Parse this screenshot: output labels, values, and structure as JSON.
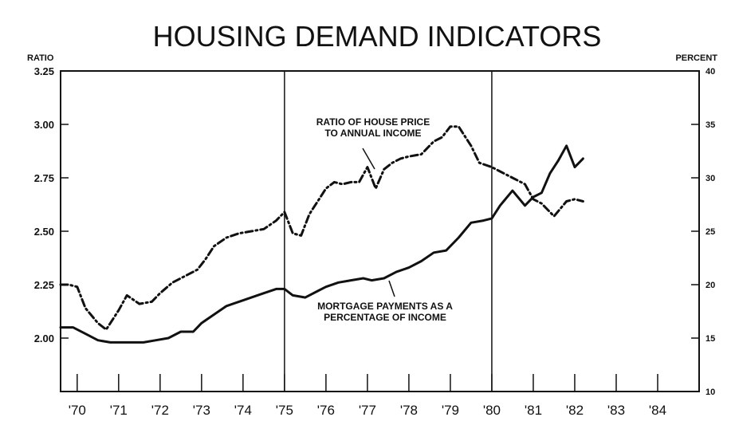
{
  "chart_data": {
    "type": "line",
    "title": "HOUSING DEMAND INDICATORS",
    "left_axis_unit": "RATIO",
    "right_axis_unit": "PERCENT",
    "x_tick_labels": [
      "'70",
      "'71",
      "'72",
      "'73",
      "'74",
      "'75",
      "'76",
      "'77",
      "'78",
      "'79",
      "'80",
      "'81",
      "'82",
      "'83",
      "'84"
    ],
    "x_range": [
      1969.6,
      1985.0
    ],
    "y_left_ticks": [
      "3.25",
      "3.00",
      "2.75",
      "2.50",
      "2.25",
      "2.00"
    ],
    "y_left_range": [
      1.75,
      3.25
    ],
    "y_right_ticks": [
      "40",
      "35",
      "30",
      "25",
      "20",
      "15",
      "10"
    ],
    "y_right_range": [
      10,
      40
    ],
    "vertical_markers_x": [
      1975.0,
      1980.0
    ],
    "grid": false,
    "legend": "none",
    "annotations": [
      {
        "lines": [
          "RATIO OF HOUSE PRICE",
          "TO ANNUAL INCOME"
        ],
        "series": "ratio"
      },
      {
        "lines": [
          "MORTGAGE PAYMENTS AS A",
          "PERCENTAGE OF INCOME"
        ],
        "series": "mortgage"
      }
    ],
    "series": [
      {
        "key": "ratio",
        "axis": "left",
        "style": "dashdot",
        "x": [
          1969.6,
          1969.8,
          1970.0,
          1970.2,
          1970.5,
          1970.7,
          1971.0,
          1971.2,
          1971.5,
          1971.8,
          1972.0,
          1972.3,
          1972.6,
          1972.9,
          1973.1,
          1973.3,
          1973.6,
          1973.9,
          1974.2,
          1974.5,
          1974.8,
          1975.0,
          1975.2,
          1975.4,
          1975.6,
          1975.8,
          1976.0,
          1976.2,
          1976.4,
          1976.6,
          1976.8,
          1977.0,
          1977.2,
          1977.4,
          1977.6,
          1977.8,
          1978.0,
          1978.3,
          1978.6,
          1978.8,
          1979.0,
          1979.2,
          1979.5,
          1979.7,
          1980.0,
          1980.2,
          1980.5,
          1980.8,
          1981.0,
          1981.2,
          1981.5,
          1981.8,
          1982.0,
          1982.2
        ],
        "y": [
          2.25,
          2.25,
          2.24,
          2.14,
          2.07,
          2.04,
          2.13,
          2.2,
          2.16,
          2.17,
          2.21,
          2.26,
          2.29,
          2.32,
          2.37,
          2.43,
          2.47,
          2.49,
          2.5,
          2.51,
          2.55,
          2.59,
          2.49,
          2.48,
          2.58,
          2.64,
          2.7,
          2.73,
          2.72,
          2.73,
          2.73,
          2.8,
          2.7,
          2.79,
          2.82,
          2.84,
          2.85,
          2.86,
          2.92,
          2.94,
          2.99,
          2.99,
          2.9,
          2.82,
          2.8,
          2.78,
          2.75,
          2.72,
          2.65,
          2.63,
          2.57,
          2.64,
          2.65,
          2.64
        ]
      },
      {
        "key": "mortgage",
        "axis": "left",
        "style": "solid",
        "x": [
          1969.6,
          1969.9,
          1970.2,
          1970.5,
          1970.8,
          1971.0,
          1971.3,
          1971.6,
          1971.9,
          1972.2,
          1972.5,
          1972.8,
          1973.0,
          1973.3,
          1973.6,
          1973.9,
          1974.2,
          1974.5,
          1974.8,
          1975.0,
          1975.2,
          1975.5,
          1975.8,
          1976.0,
          1976.3,
          1976.6,
          1976.9,
          1977.1,
          1977.4,
          1977.7,
          1978.0,
          1978.3,
          1978.6,
          1978.9,
          1979.2,
          1979.5,
          1979.8,
          1980.0,
          1980.2,
          1980.5,
          1980.8,
          1981.0,
          1981.2,
          1981.4,
          1981.6,
          1981.8,
          1982.0,
          1982.2
        ],
        "y": [
          2.05,
          2.05,
          2.02,
          1.99,
          1.98,
          1.98,
          1.98,
          1.98,
          1.99,
          2.0,
          2.03,
          2.03,
          2.07,
          2.11,
          2.15,
          2.17,
          2.19,
          2.21,
          2.23,
          2.23,
          2.2,
          2.19,
          2.22,
          2.24,
          2.26,
          2.27,
          2.28,
          2.27,
          2.28,
          2.31,
          2.33,
          2.36,
          2.4,
          2.41,
          2.47,
          2.54,
          2.55,
          2.56,
          2.62,
          2.69,
          2.62,
          2.66,
          2.68,
          2.77,
          2.83,
          2.9,
          2.8,
          2.84
        ]
      }
    ]
  }
}
